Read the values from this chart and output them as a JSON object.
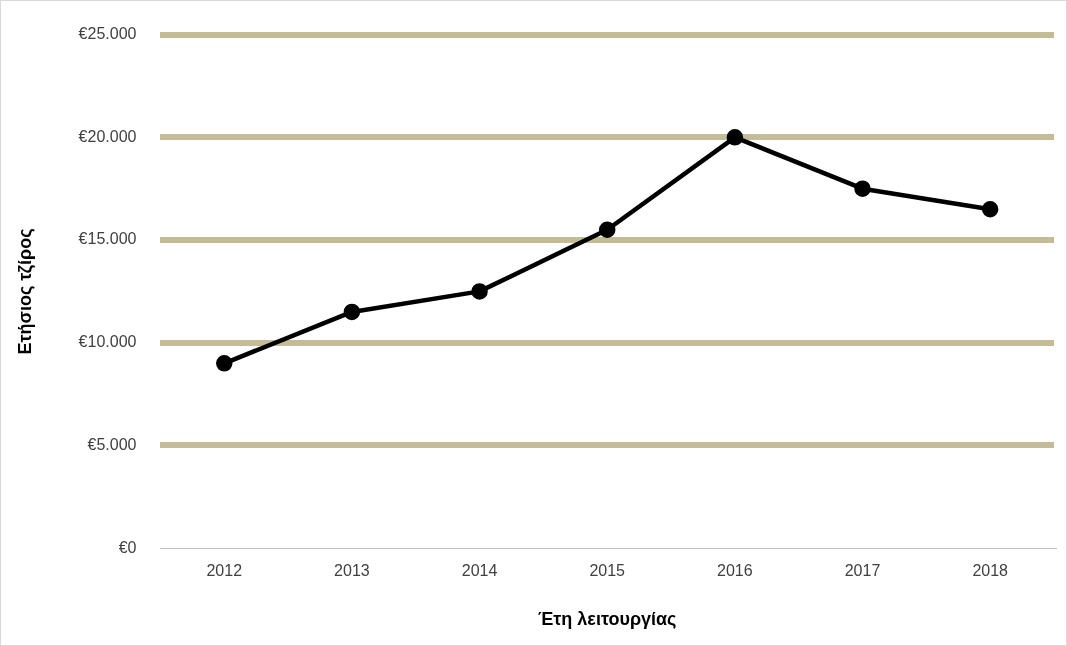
{
  "chart_data": {
    "type": "line",
    "xlabel": "Έτη λειτουργίας",
    "ylabel": "Ετήσιος τζίρος",
    "categories": [
      "2012",
      "2013",
      "2014",
      "2015",
      "2016",
      "2017",
      "2018"
    ],
    "series": [
      {
        "color": "#000000",
        "values": [
          9000,
          11500,
          12500,
          15500,
          20000,
          17500,
          16500
        ]
      }
    ],
    "ylim": [
      0,
      25000
    ],
    "yticks": [
      {
        "value": 0,
        "label": "€0"
      },
      {
        "value": 5000,
        "label": "€5.000"
      },
      {
        "value": 10000,
        "label": "€10.000"
      },
      {
        "value": 15000,
        "label": "€15.000"
      },
      {
        "value": 20000,
        "label": "€20.000"
      },
      {
        "value": 25000,
        "label": "€25.000"
      }
    ],
    "grid": "y",
    "legend": false,
    "marker": "circle",
    "line_style": "solid"
  }
}
